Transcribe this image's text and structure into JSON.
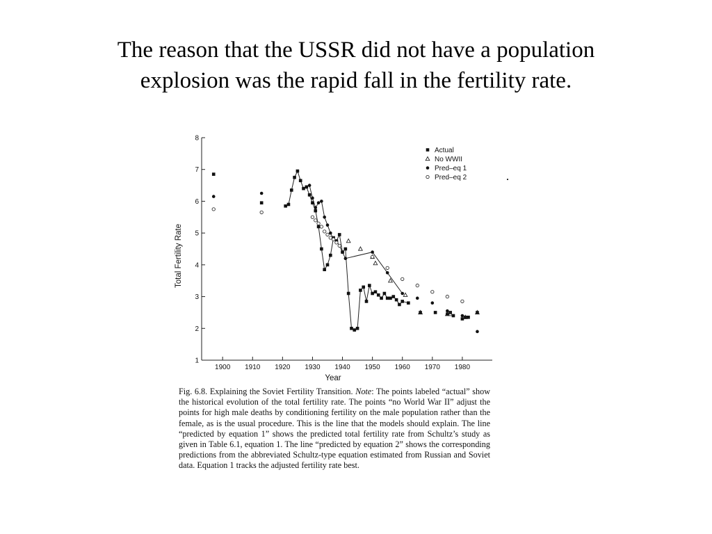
{
  "slide": {
    "title_line1": "The reason that the USSR did not have a population",
    "title_line2": "explosion was the rapid fall in the fertility rate."
  },
  "caption": {
    "fig_label": "Fig. 6.8.",
    "fig_title": "Explaining the Soviet Fertility Transition.",
    "note_label": "Note",
    "body": ": The points labeled “actual” show the historical evolution of the total fertility rate. The points “no World War II” adjust the points for high male deaths by conditioning fertility on the male population rather than the female, as is the usual procedure. This is the line that the models should explain. The line “predicted by equation 1” shows the predicted total fertility rate from Schultz’s study as given in Table 6.1, equation 1. The line “predicted by equation 2” shows the corresponding predictions from the abbreviated Schultz-type equation estimated from Russian and Soviet data. Equation 1 tracks the adjusted fertility rate best."
  },
  "chart_data": {
    "type": "scatter",
    "title": "",
    "xlabel": "Year",
    "ylabel": "Total Fertility Rate",
    "xlim": [
      1893,
      1990
    ],
    "ylim": [
      1,
      8
    ],
    "x_ticks": [
      1900,
      1910,
      1920,
      1930,
      1940,
      1950,
      1960,
      1970,
      1980
    ],
    "y_ticks": [
      1,
      2,
      3,
      4,
      5,
      6,
      7,
      8
    ],
    "grid": false,
    "legend_position": "top-right",
    "series": [
      {
        "name": "Actual",
        "marker": "filled-square",
        "connected": true,
        "points": [
          [
            1897,
            6.85
          ],
          [
            1913,
            5.95
          ],
          [
            1921,
            5.85
          ],
          [
            1922,
            5.9
          ],
          [
            1923,
            6.35
          ],
          [
            1924,
            6.75
          ],
          [
            1925,
            6.95
          ],
          [
            1926,
            6.65
          ],
          [
            1927,
            6.4
          ],
          [
            1928,
            6.45
          ],
          [
            1929,
            6.2
          ],
          [
            1930,
            5.95
          ],
          [
            1931,
            5.7
          ],
          [
            1932,
            5.2
          ],
          [
            1933,
            4.5
          ],
          [
            1934,
            3.85
          ],
          [
            1935,
            4.0
          ],
          [
            1936,
            4.3
          ],
          [
            1937,
            4.85
          ],
          [
            1938,
            4.75
          ],
          [
            1939,
            4.95
          ],
          [
            1940,
            4.4
          ],
          [
            1941,
            4.5
          ],
          [
            1942,
            3.1
          ],
          [
            1943,
            2.0
          ],
          [
            1944,
            1.95
          ],
          [
            1945,
            2.0
          ],
          [
            1946,
            3.2
          ],
          [
            1947,
            3.3
          ],
          [
            1948,
            2.85
          ],
          [
            1949,
            3.35
          ],
          [
            1950,
            3.1
          ],
          [
            1951,
            3.15
          ],
          [
            1952,
            3.05
          ],
          [
            1953,
            2.95
          ],
          [
            1954,
            3.1
          ],
          [
            1955,
            2.95
          ],
          [
            1956,
            2.95
          ],
          [
            1957,
            3.0
          ],
          [
            1958,
            2.9
          ],
          [
            1959,
            2.75
          ],
          [
            1960,
            2.85
          ],
          [
            1962,
            2.8
          ],
          [
            1966,
            2.5
          ],
          [
            1971,
            2.5
          ],
          [
            1975,
            2.45
          ],
          [
            1976,
            2.5
          ],
          [
            1977,
            2.4
          ],
          [
            1980,
            2.3
          ],
          [
            1981,
            2.35
          ],
          [
            1982,
            2.35
          ],
          [
            1985,
            2.5
          ]
        ]
      },
      {
        "name": "No WWII",
        "marker": "open-triangle",
        "connected": false,
        "points": [
          [
            1942,
            4.75
          ],
          [
            1946,
            4.5
          ],
          [
            1950,
            4.25
          ],
          [
            1951,
            4.05
          ],
          [
            1956,
            3.5
          ],
          [
            1961,
            3.05
          ],
          [
            1966,
            2.5
          ],
          [
            1975,
            2.45
          ],
          [
            1976,
            2.45
          ],
          [
            1981,
            2.35
          ],
          [
            1985,
            2.5
          ]
        ]
      },
      {
        "name": "Pred–eq 1",
        "marker": "filled-circle",
        "connected": true,
        "points": [
          [
            1897,
            6.15
          ],
          [
            1913,
            6.25
          ],
          [
            1928,
            6.45
          ],
          [
            1929,
            6.5
          ],
          [
            1930,
            6.1
          ],
          [
            1931,
            5.8
          ],
          [
            1932,
            5.95
          ],
          [
            1933,
            6.0
          ],
          [
            1934,
            5.5
          ],
          [
            1935,
            5.25
          ],
          [
            1936,
            5.0
          ],
          [
            1937,
            4.8
          ],
          [
            1938,
            4.75
          ],
          [
            1939,
            4.6
          ],
          [
            1940,
            4.4
          ],
          [
            1941,
            4.2
          ],
          [
            1950,
            4.4
          ],
          [
            1955,
            3.75
          ],
          [
            1960,
            3.1
          ],
          [
            1965,
            2.95
          ],
          [
            1970,
            2.8
          ],
          [
            1975,
            2.55
          ],
          [
            1980,
            2.4
          ],
          [
            1985,
            1.9
          ]
        ]
      },
      {
        "name": "Pred–eq 2",
        "marker": "open-circle",
        "connected": false,
        "points": [
          [
            1897,
            5.75
          ],
          [
            1913,
            5.65
          ],
          [
            1930,
            5.5
          ],
          [
            1931,
            5.4
          ],
          [
            1932,
            5.3
          ],
          [
            1933,
            5.2
          ],
          [
            1934,
            5.05
          ],
          [
            1935,
            4.95
          ],
          [
            1936,
            4.85
          ],
          [
            1937,
            4.8
          ],
          [
            1938,
            4.7
          ],
          [
            1939,
            4.6
          ],
          [
            1950,
            4.25
          ],
          [
            1955,
            3.9
          ],
          [
            1960,
            3.55
          ],
          [
            1965,
            3.35
          ],
          [
            1970,
            3.15
          ],
          [
            1975,
            3.0
          ],
          [
            1980,
            2.85
          ]
        ]
      }
    ]
  }
}
